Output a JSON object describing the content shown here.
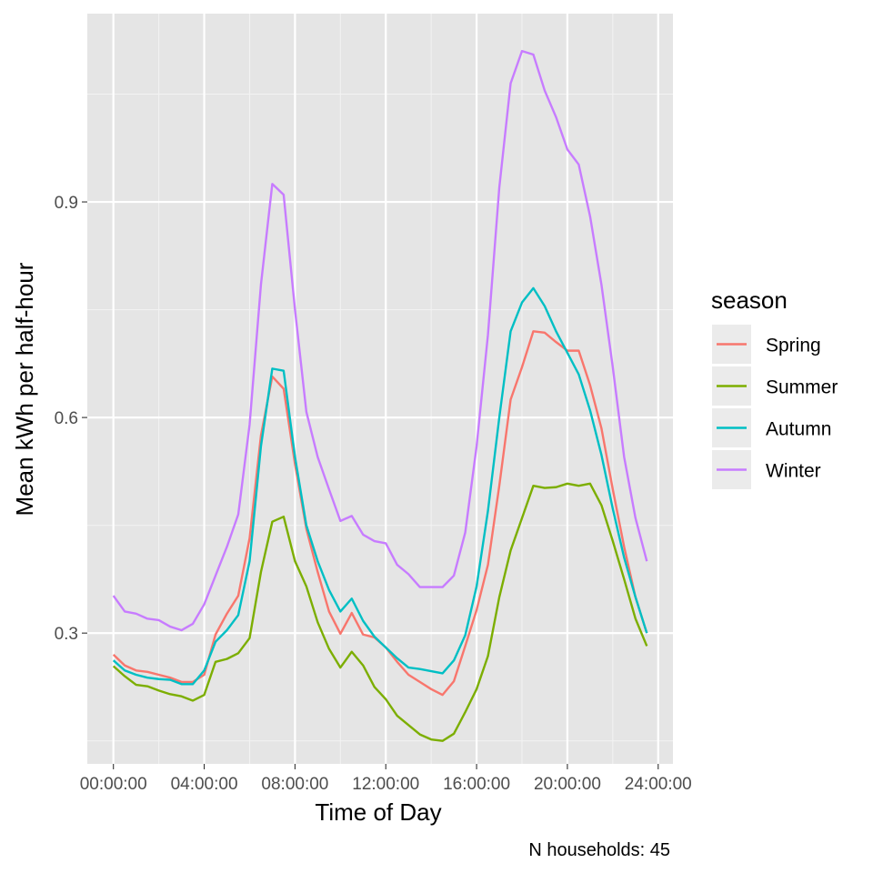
{
  "chart_data": {
    "type": "line",
    "xlabel": "Time of Day",
    "ylabel": "Mean kWh per half-hour",
    "caption": "N households: 45",
    "x_hours": [
      0,
      0.5,
      1,
      1.5,
      2,
      2.5,
      3,
      3.5,
      4,
      4.5,
      5,
      5.5,
      6,
      6.5,
      7,
      7.5,
      8,
      8.5,
      9,
      9.5,
      10,
      10.5,
      11,
      11.5,
      12,
      12.5,
      13,
      13.5,
      14,
      14.5,
      15,
      15.5,
      16,
      16.5,
      17,
      17.5,
      18,
      18.5,
      19,
      19.5,
      20,
      20.5,
      21,
      21.5,
      22,
      22.5,
      23,
      23.5
    ],
    "x_ticks": [
      {
        "hour": 0,
        "label": "00:00:00"
      },
      {
        "hour": 4,
        "label": "04:00:00"
      },
      {
        "hour": 8,
        "label": "08:00:00"
      },
      {
        "hour": 12,
        "label": "12:00:00"
      },
      {
        "hour": 16,
        "label": "16:00:00"
      },
      {
        "hour": 20,
        "label": "20:00:00"
      },
      {
        "hour": 24,
        "label": "24:00:00"
      }
    ],
    "y_ticks": [
      {
        "value": 0.3,
        "label": "0.3"
      },
      {
        "value": 0.6,
        "label": "0.6"
      },
      {
        "value": 0.9,
        "label": "0.9"
      }
    ],
    "xlim": [
      -1.15,
      24.65
    ],
    "ylim": [
      0.118,
      1.162
    ],
    "grid": true,
    "background": "#e5e5e5",
    "legend": {
      "title": "season",
      "placement": "right"
    },
    "series": [
      {
        "name": "Spring",
        "color": "#f8766d",
        "values": [
          0.27,
          0.255,
          0.248,
          0.246,
          0.242,
          0.238,
          0.232,
          0.232,
          0.242,
          0.298,
          0.327,
          0.352,
          0.432,
          0.575,
          0.657,
          0.64,
          0.535,
          0.445,
          0.385,
          0.33,
          0.299,
          0.328,
          0.298,
          0.294,
          0.28,
          0.26,
          0.242,
          0.232,
          0.222,
          0.214,
          0.233,
          0.282,
          0.332,
          0.395,
          0.505,
          0.625,
          0.67,
          0.72,
          0.718,
          0.705,
          0.693,
          0.693,
          0.645,
          0.585,
          0.5,
          0.42,
          0.35,
          0.3
        ]
      },
      {
        "name": "Summer",
        "color": "#7cae00",
        "values": [
          0.254,
          0.24,
          0.228,
          0.226,
          0.22,
          0.215,
          0.212,
          0.206,
          0.214,
          0.26,
          0.264,
          0.272,
          0.293,
          0.385,
          0.455,
          0.462,
          0.4,
          0.365,
          0.315,
          0.278,
          0.252,
          0.274,
          0.255,
          0.225,
          0.208,
          0.185,
          0.172,
          0.159,
          0.152,
          0.15,
          0.16,
          0.19,
          0.222,
          0.268,
          0.35,
          0.415,
          0.46,
          0.505,
          0.502,
          0.503,
          0.508,
          0.505,
          0.508,
          0.478,
          0.428,
          0.375,
          0.32,
          0.282
        ]
      },
      {
        "name": "Autumn",
        "color": "#00bfc4",
        "values": [
          0.262,
          0.248,
          0.242,
          0.238,
          0.236,
          0.235,
          0.229,
          0.229,
          0.248,
          0.288,
          0.304,
          0.325,
          0.4,
          0.56,
          0.668,
          0.665,
          0.545,
          0.45,
          0.4,
          0.36,
          0.33,
          0.348,
          0.317,
          0.295,
          0.28,
          0.265,
          0.252,
          0.25,
          0.247,
          0.244,
          0.262,
          0.297,
          0.365,
          0.47,
          0.6,
          0.72,
          0.76,
          0.78,
          0.755,
          0.72,
          0.69,
          0.66,
          0.61,
          0.548,
          0.473,
          0.405,
          0.35,
          0.3
        ]
      },
      {
        "name": "Winter",
        "color": "#c77cff",
        "values": [
          0.352,
          0.33,
          0.327,
          0.32,
          0.318,
          0.309,
          0.304,
          0.313,
          0.34,
          0.38,
          0.42,
          0.465,
          0.59,
          0.785,
          0.925,
          0.91,
          0.75,
          0.608,
          0.545,
          0.5,
          0.456,
          0.463,
          0.437,
          0.428,
          0.425,
          0.395,
          0.382,
          0.364,
          0.364,
          0.364,
          0.38,
          0.44,
          0.56,
          0.715,
          0.92,
          1.065,
          1.11,
          1.105,
          1.055,
          1.018,
          0.973,
          0.952,
          0.88,
          0.785,
          0.67,
          0.545,
          0.46,
          0.4
        ]
      }
    ]
  }
}
